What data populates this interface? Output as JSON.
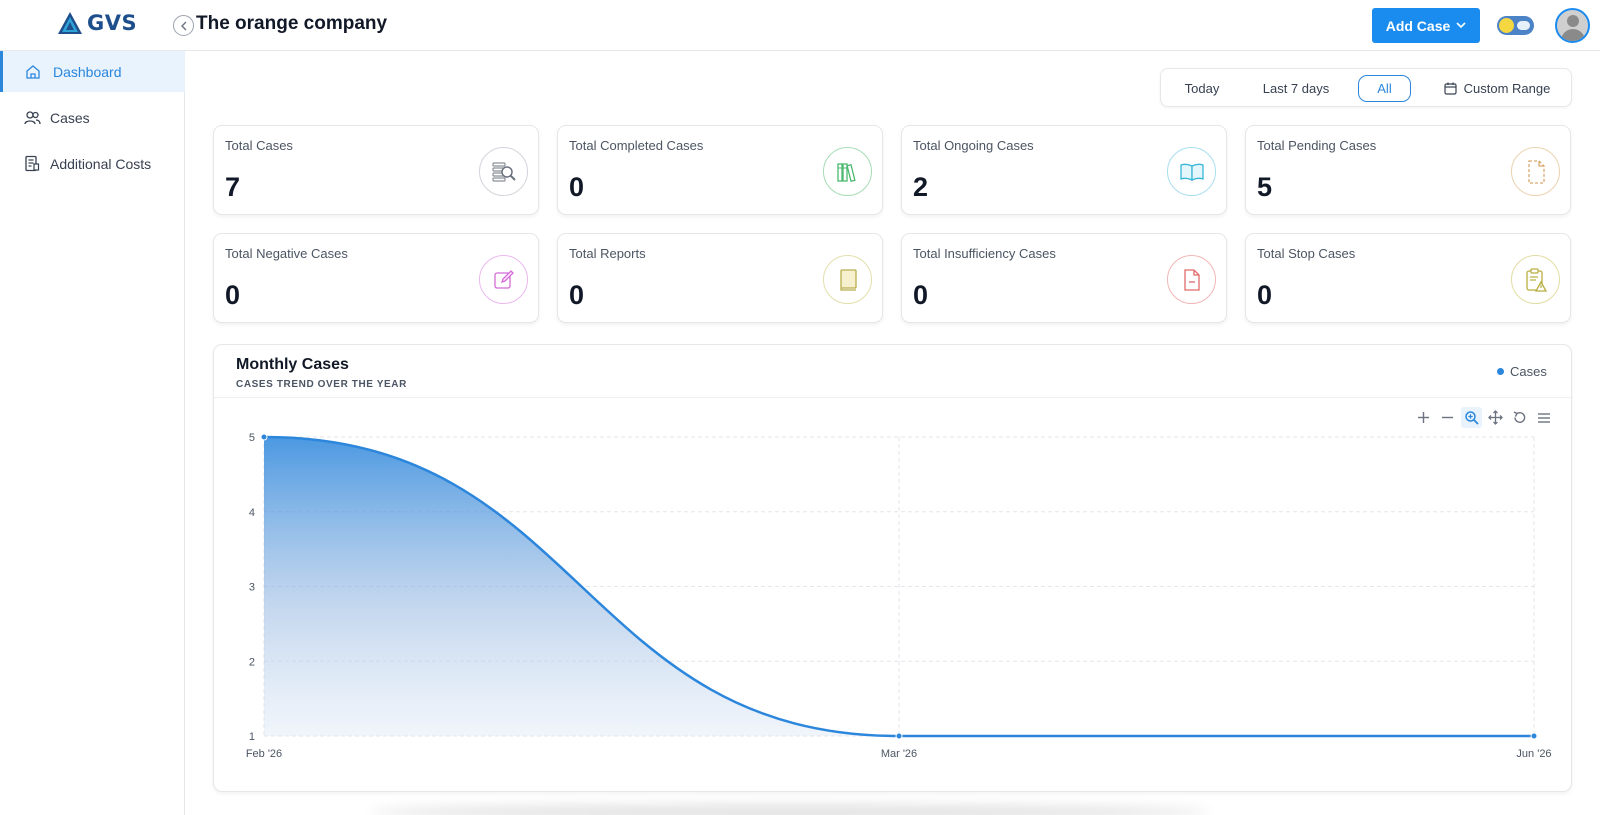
{
  "header": {
    "logo_text": "GVS",
    "collapse_icon": "chevron-left-icon",
    "company_name": "The orange company",
    "add_case_label": "Add Case"
  },
  "sidebar": {
    "items": [
      {
        "label": "Dashboard",
        "icon": "home-icon",
        "active": true
      },
      {
        "label": "Cases",
        "icon": "users-icon",
        "active": false
      },
      {
        "label": "Additional Costs",
        "icon": "receipt-icon",
        "active": false
      }
    ]
  },
  "range_filter": {
    "today": "Today",
    "last7": "Last 7 days",
    "all": "All",
    "custom": "Custom Range",
    "selected": "All"
  },
  "stats": [
    {
      "label": "Total Cases",
      "value": "7",
      "icon": "search-files-icon",
      "color": "#9ca3af"
    },
    {
      "label": "Total Completed Cases",
      "value": "0",
      "icon": "books-icon",
      "color": "#4cb96f"
    },
    {
      "label": "Total Ongoing Cases",
      "value": "2",
      "icon": "open-book-icon",
      "color": "#38b6d8"
    },
    {
      "label": "Total Pending Cases",
      "value": "5",
      "icon": "pending-file-icon",
      "color": "#d9a86c"
    },
    {
      "label": "Total Negative Cases",
      "value": "0",
      "icon": "edit-icon",
      "color": "#d46ad6"
    },
    {
      "label": "Total Reports",
      "value": "0",
      "icon": "report-book-icon",
      "color": "#c9bf5a"
    },
    {
      "label": "Total Insufficiency Cases",
      "value": "0",
      "icon": "file-minus-icon",
      "color": "#e06a6a"
    },
    {
      "label": "Total Stop Cases",
      "value": "0",
      "icon": "clipboard-alert-icon",
      "color": "#b8ad3f"
    }
  ],
  "chart_data": {
    "type": "area",
    "title": "Monthly Cases",
    "subtitle": "CASES TREND OVER THE YEAR",
    "categories": [
      "Feb '26",
      "Mar '26",
      "Jun '26"
    ],
    "series": [
      {
        "name": "Cases",
        "values": [
          5,
          1,
          1
        ]
      }
    ],
    "ylim": [
      1,
      5
    ],
    "yticks": [
      1,
      2,
      3,
      4,
      5
    ],
    "grid": true,
    "legend": "top-right",
    "color": "#2b86dc"
  },
  "chart_toolbar": [
    "zoom-in-icon",
    "zoom-out-icon",
    "selection-zoom-icon",
    "pan-icon",
    "reset-icon",
    "menu-icon"
  ]
}
